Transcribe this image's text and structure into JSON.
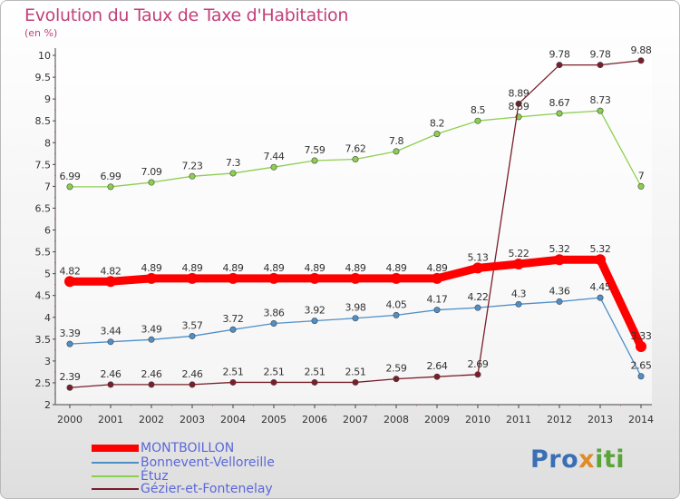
{
  "title": "Evolution du Taux de Taxe d'Habitation",
  "unit_label": "(en %)",
  "logo": {
    "part1": "Pro",
    "part2": "x",
    "part3": "iti"
  },
  "chart_data": {
    "type": "line",
    "title": "Evolution du Taux de Taxe d'Habitation",
    "ylabel": "(en %)",
    "xlabel": "",
    "x": [
      "2000",
      "2001",
      "2002",
      "2003",
      "2004",
      "2005",
      "2006",
      "2007",
      "2008",
      "2009",
      "2010",
      "2011",
      "2012",
      "2013",
      "2014"
    ],
    "ylim": [
      2,
      10
    ],
    "yticks": [
      "2",
      "2.5",
      "3",
      "3.5",
      "4",
      "4.5",
      "5",
      "5.5",
      "6",
      "6.5",
      "7",
      "7.5",
      "8",
      "8.5",
      "9",
      "9.5",
      "10"
    ],
    "grid": false,
    "legend_position": "bottom-left",
    "series": [
      {
        "name": "MONTBOILLON",
        "color": "#ff0000",
        "emphasis": true,
        "values": [
          4.82,
          4.82,
          4.89,
          4.89,
          4.89,
          4.89,
          4.89,
          4.89,
          4.89,
          4.89,
          5.13,
          5.22,
          5.32,
          5.32,
          3.33
        ],
        "labels": [
          "4.82",
          "4.82",
          "4.89",
          "4.89",
          "4.89",
          "4.89",
          "4.89",
          "4.89",
          "4.89",
          "4.89",
          "5.13",
          "5.22",
          "5.32",
          "5.32",
          "3.33"
        ]
      },
      {
        "name": "Bonnevent-Velloreille",
        "color": "#4f8fc8",
        "values": [
          3.39,
          3.44,
          3.49,
          3.57,
          3.72,
          3.86,
          3.92,
          3.98,
          4.05,
          4.17,
          4.22,
          4.3,
          4.36,
          4.45,
          2.65
        ],
        "labels": [
          "3.39",
          "3.44",
          "3.49",
          "3.57",
          "3.72",
          "3.86",
          "3.92",
          "3.98",
          "4.05",
          "4.17",
          "4.22",
          "4.3",
          "4.36",
          "4.45",
          "2.65"
        ]
      },
      {
        "name": "Étuz",
        "color": "#8ccf4f",
        "values": [
          6.99,
          6.99,
          7.09,
          7.23,
          7.3,
          7.44,
          7.59,
          7.62,
          7.8,
          8.2,
          8.5,
          8.59,
          8.67,
          8.73,
          7
        ],
        "labels": [
          "6.99",
          "6.99",
          "7.09",
          "7.23",
          "7.3",
          "7.44",
          "7.59",
          "7.62",
          "7.8",
          "8.2",
          "8.5",
          "8.59",
          "8.67",
          "8.73",
          "7"
        ]
      },
      {
        "name": "Gézier-et-Fontenelay",
        "color": "#7a1e2a",
        "values": [
          2.39,
          2.46,
          2.46,
          2.46,
          2.51,
          2.51,
          2.51,
          2.51,
          2.59,
          2.64,
          2.69,
          8.89,
          9.78,
          9.78,
          9.88
        ],
        "labels": [
          "2.39",
          "2.46",
          "2.46",
          "2.46",
          "2.51",
          "2.51",
          "2.51",
          "2.51",
          "2.59",
          "2.64",
          "2.69",
          "8.89",
          "9.78",
          "9.78",
          "9.88"
        ]
      }
    ]
  }
}
